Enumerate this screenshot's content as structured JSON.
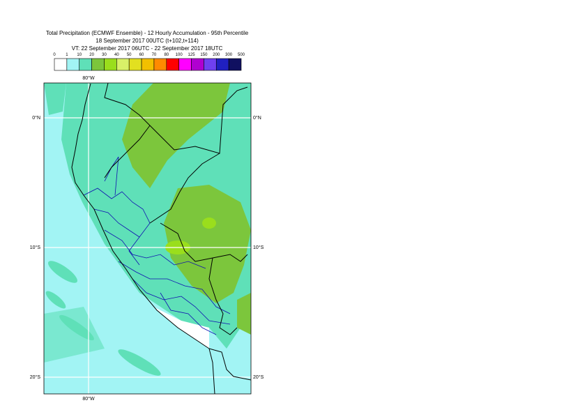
{
  "header": {
    "title_lines": [
      "Total Precipitation (ECMWF Ensemble) - 12 Hourly Accumulation - 95th Percentile",
      "18 September 2017 00UTC (t+102,t+114)",
      "VT: 22 September 2017 06UTC - 22 September 2017 18UTC"
    ]
  },
  "legend": {
    "thresholds": [
      0,
      1,
      10,
      20,
      30,
      40,
      50,
      60,
      70,
      80,
      100,
      125,
      150,
      200,
      300,
      500
    ],
    "colors": [
      "#ffffff",
      "#a2f4f4",
      "#5fe0b8",
      "#7cc63c",
      "#9ade1c",
      "#d8f068",
      "#e2e020",
      "#f2c000",
      "#ff8a00",
      "#ff0000",
      "#ff00ff",
      "#b000d0",
      "#7040f0",
      "#2020c0",
      "#101060"
    ]
  },
  "map": {
    "lon_label": "80°W",
    "lat_labels": [
      "0°N",
      "10°S",
      "20°S"
    ]
  }
}
